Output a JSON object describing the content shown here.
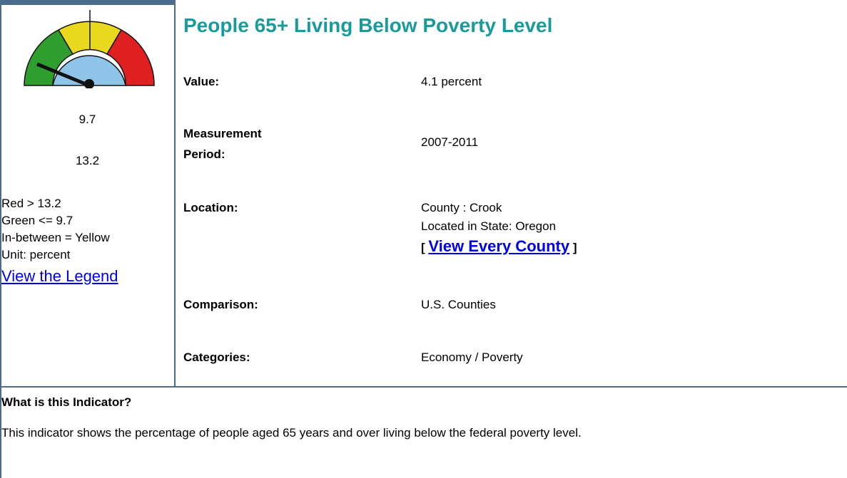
{
  "gauge": {
    "low": "9.7",
    "high": "13.2"
  },
  "legend": {
    "lines": [
      "Red > 13.2",
      "Green <= 9.7",
      "In-between = Yellow",
      "Unit: percent"
    ],
    "link": "View the Legend"
  },
  "title": "People 65+ Living Below Poverty Level",
  "fields": {
    "value": {
      "label": "Value:",
      "text": "4.1 percent"
    },
    "period": {
      "label": "Measurement Period:",
      "text": "2007-2011"
    },
    "location": {
      "label": "Location:",
      "lines": [
        "County : Crook",
        "Located in State: Oregon"
      ],
      "open": "[",
      "link": "View Every County",
      "close": "]"
    },
    "comparison": {
      "label": "Comparison:",
      "text": "U.S. Counties"
    },
    "categories": {
      "label": "Categories:",
      "text": "Economy / Poverty"
    }
  },
  "description": {
    "heading": "What is this Indicator?",
    "text": "This indicator shows the percentage of people aged 65 years and over living below the federal poverty level."
  }
}
